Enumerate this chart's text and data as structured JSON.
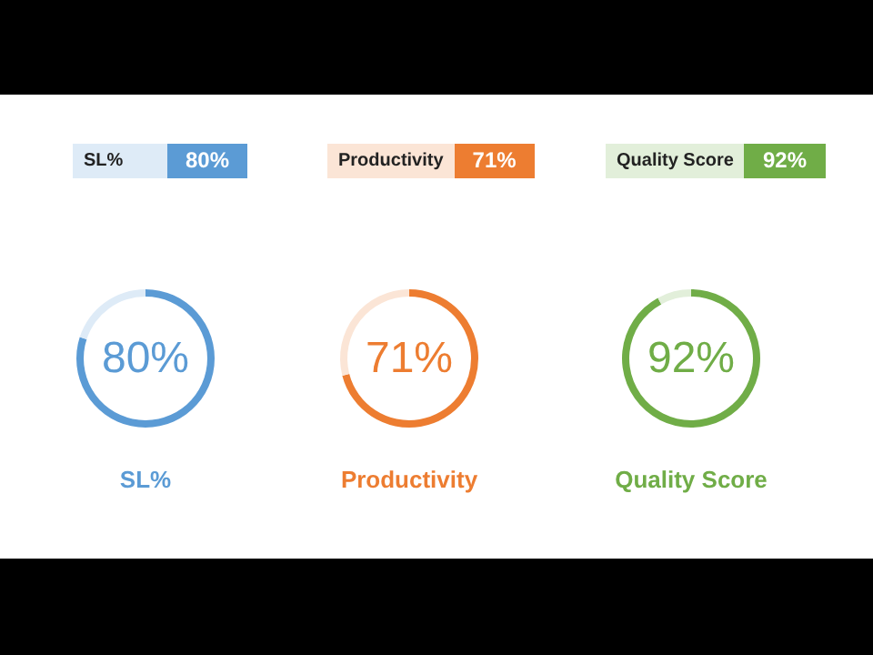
{
  "chart_data": [
    {
      "type": "donut",
      "title": "SL%",
      "categories": [
        null,
        null
      ],
      "values": [
        80,
        20
      ],
      "colors": [
        "#5b9bd5",
        "#deebf7"
      ],
      "value_labels": [
        "80%",
        null
      ],
      "annotations": [
        "SL%",
        "80%"
      ]
    },
    {
      "type": "donut",
      "title": "Productivity",
      "categories": [
        null,
        null
      ],
      "values": [
        71,
        29
      ],
      "colors": [
        "#ed7d31",
        "#fbe5d6"
      ],
      "value_labels": [
        "71%",
        null
      ],
      "annotations": [
        "Productivity",
        "71%"
      ]
    },
    {
      "type": "donut",
      "title": "Quality Score",
      "categories": [
        null,
        null
      ],
      "values": [
        92,
        8
      ],
      "colors": [
        "#70ad47",
        "#e2efda"
      ],
      "value_labels": [
        "92%",
        null
      ],
      "annotations": [
        "Quality Score",
        "92%"
      ]
    }
  ]
}
